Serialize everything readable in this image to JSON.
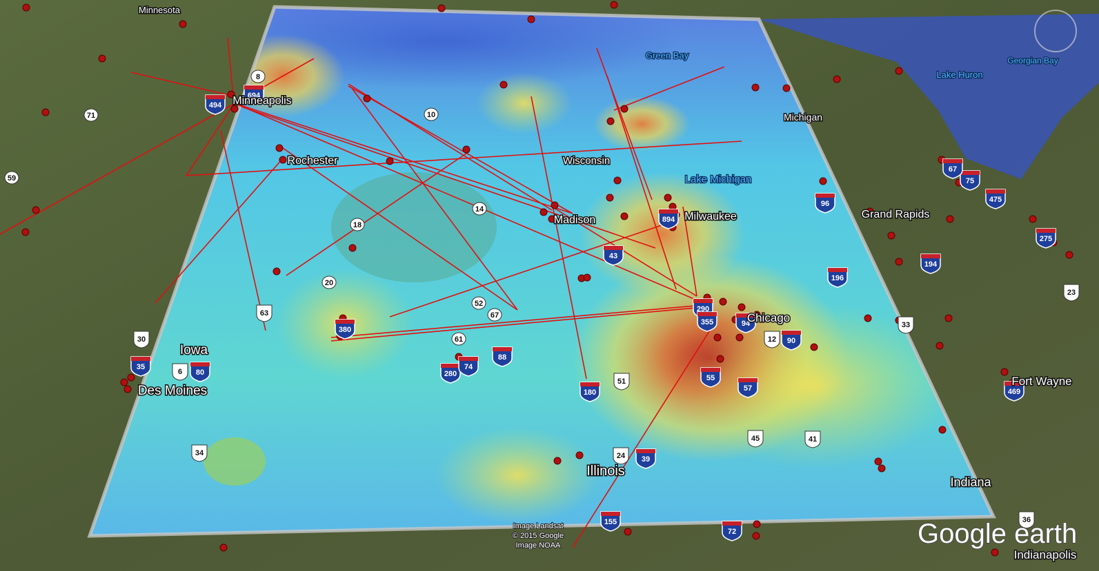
{
  "places": [
    "Minnesota",
    "Minneapolis",
    "Rochester",
    "Wisconsin",
    "Green Bay",
    "Lake Michigan",
    "Michigan",
    "Madison",
    "Milwaukee",
    "Chicago",
    "Iowa",
    "Des Moines",
    "Illinois",
    "Indiana",
    "Grand Rapids",
    "Lake Huron",
    "Georgian Bay",
    "Fort Wayne",
    "Indianapolis"
  ],
  "shields": [
    "8",
    "694",
    "494",
    "71",
    "10",
    "59",
    "14",
    "18",
    "20",
    "63",
    "52",
    "67",
    "61",
    "88",
    "280",
    "74",
    "30",
    "35",
    "6",
    "80",
    "34",
    "180",
    "51",
    "55",
    "57",
    "45",
    "41",
    "24",
    "39",
    "155",
    "72",
    "43",
    "894",
    "290",
    "355",
    "94",
    "12",
    "90",
    "196",
    "96",
    "33",
    "194",
    "475",
    "75",
    "67",
    "469",
    "36",
    "23",
    "275",
    "380"
  ],
  "attribution": [
    "Image Landsat",
    "© 2015 Google",
    "Image NOAA"
  ],
  "logo": "Google earth"
}
